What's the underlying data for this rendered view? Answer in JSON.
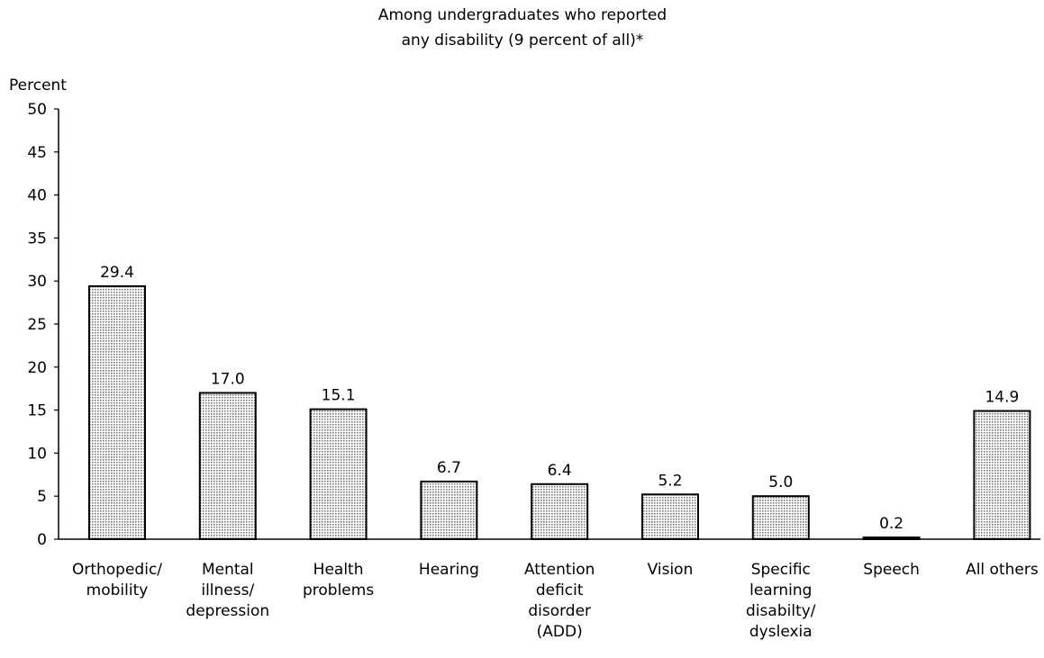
{
  "chart_data": {
    "type": "bar",
    "title": "Among undergraduates who reported any disability (9 percent of all)*",
    "title_lines": [
      "Among undergraduates who reported",
      "any disability (9 percent of all)*"
    ],
    "ylabel": "Percent",
    "xlabel": "",
    "ylim": [
      0,
      50
    ],
    "yticks": [
      0,
      5,
      10,
      15,
      20,
      25,
      30,
      35,
      40,
      45,
      50
    ],
    "grid": false,
    "legend": "none",
    "bar_fill": "#cfcfcf",
    "bar_stroke": "#000000",
    "categories": [
      "Orthopedic/ mobility",
      "Mental illness/ depression",
      "Health problems",
      "Hearing",
      "Attention deficit disorder (ADD)",
      "Vision",
      "Specific learning disabilty/ dyslexia",
      "Speech",
      "All others"
    ],
    "category_lines": [
      [
        "Orthopedic/",
        "mobility"
      ],
      [
        "Mental",
        "illness/",
        "depression"
      ],
      [
        "Health",
        "problems"
      ],
      [
        "Hearing"
      ],
      [
        "Attention",
        "deficit",
        "disorder",
        "(ADD)"
      ],
      [
        "Vision"
      ],
      [
        "Specific",
        "learning",
        "disabilty/",
        "dyslexia"
      ],
      [
        "Speech"
      ],
      [
        "All others"
      ]
    ],
    "values": [
      29.4,
      17.0,
      15.1,
      6.7,
      6.4,
      5.2,
      5.0,
      0.2,
      14.9
    ],
    "value_labels": [
      "29.4",
      "17.0",
      "15.1",
      "6.7",
      "6.4",
      "5.2",
      "5.0",
      "0.2",
      "14.9"
    ]
  }
}
